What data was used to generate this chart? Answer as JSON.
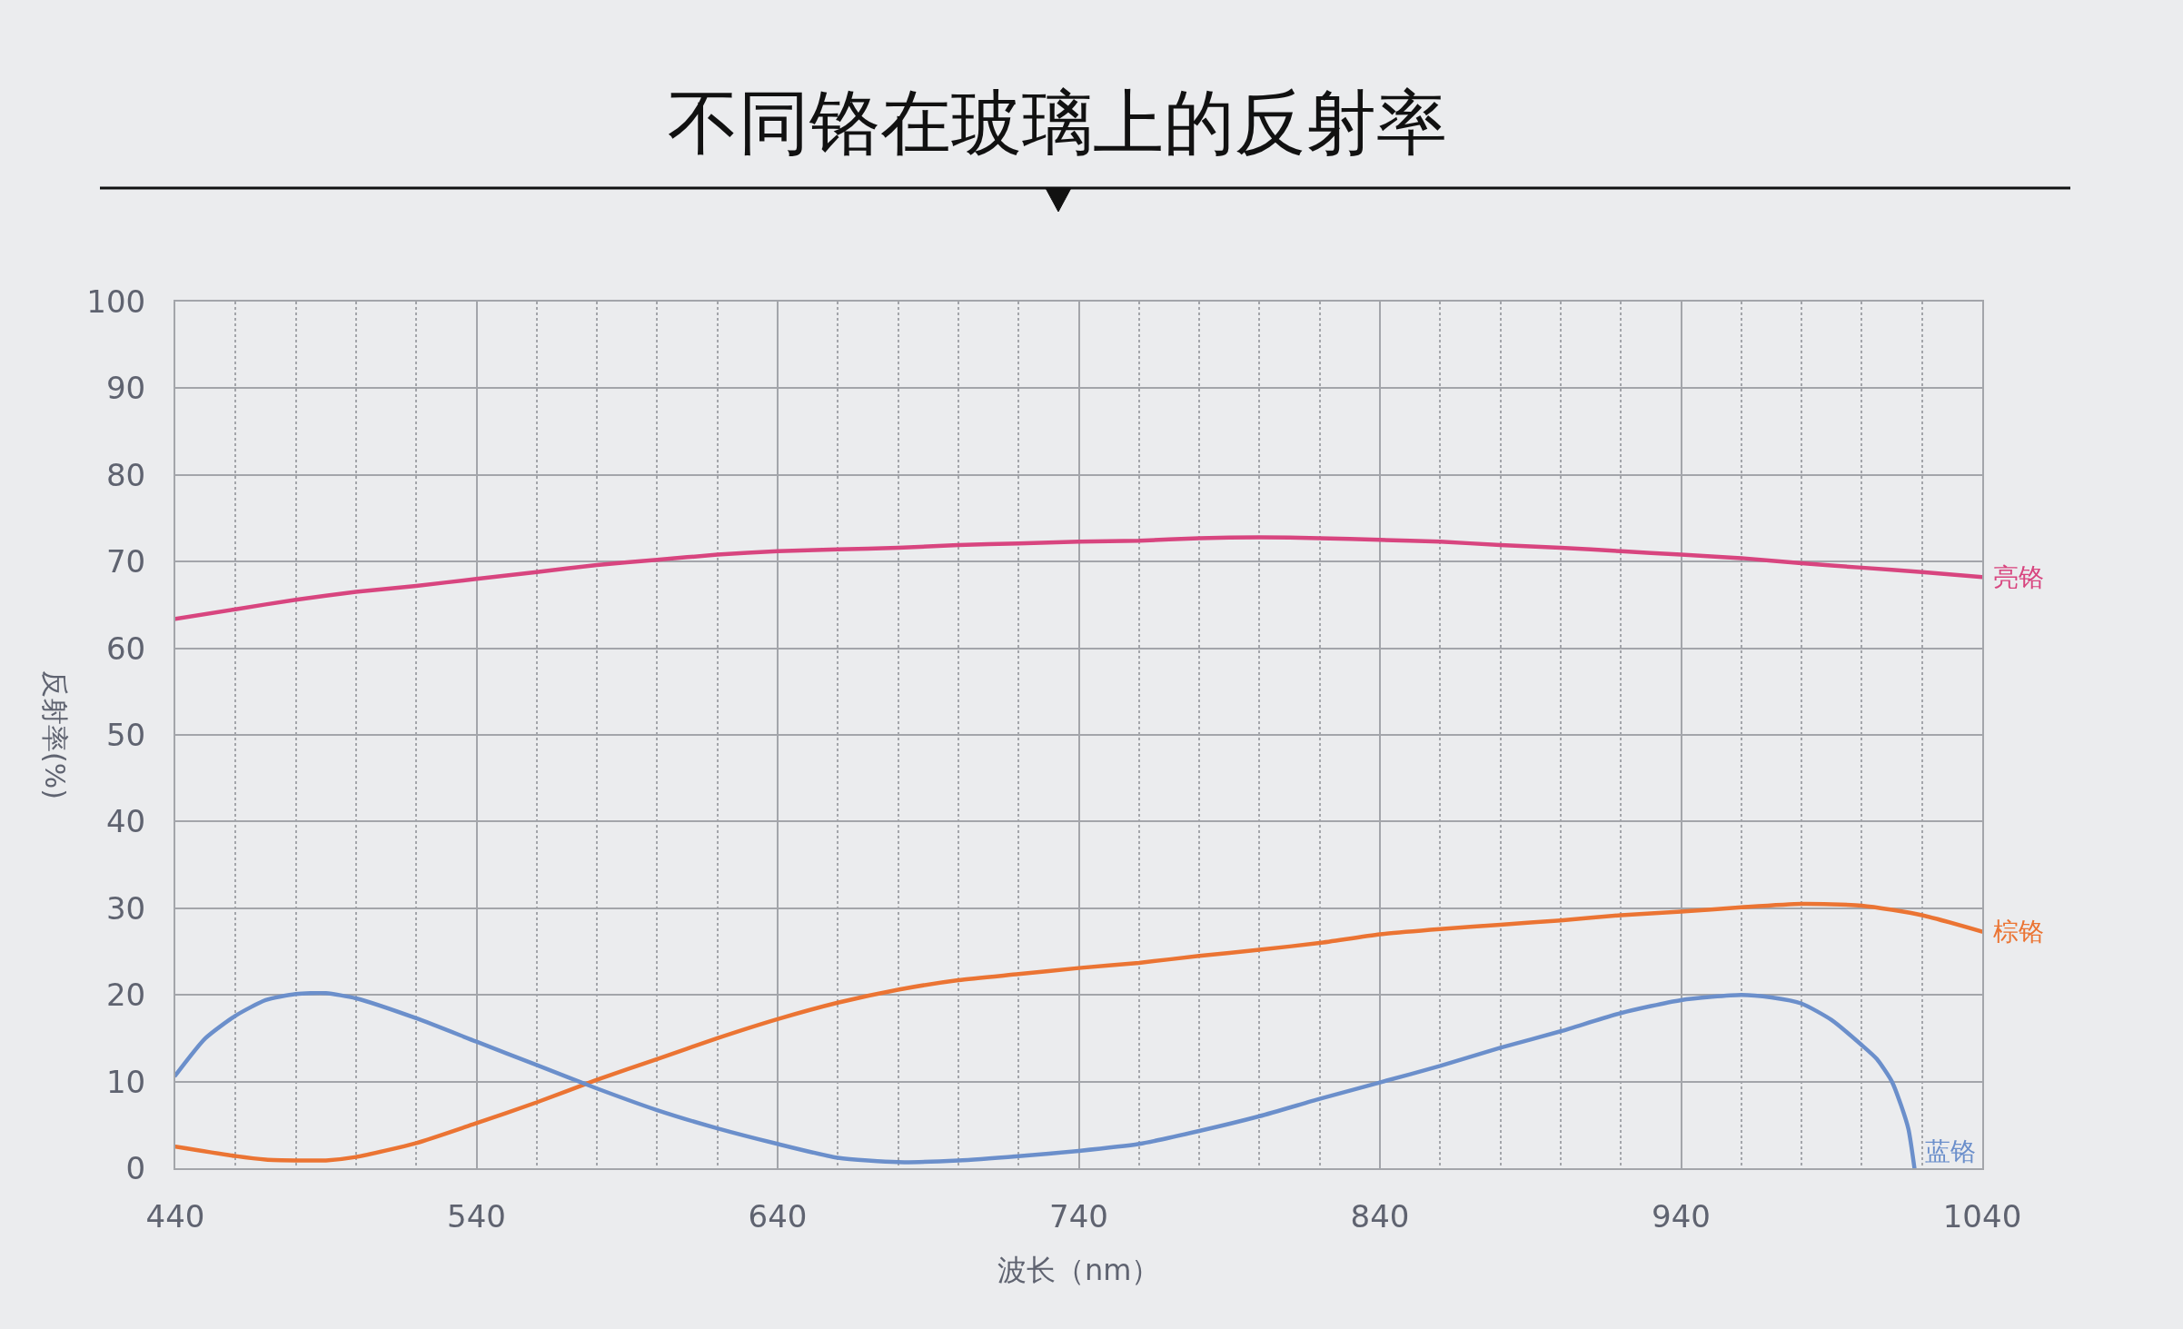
{
  "chart_data": {
    "type": "line",
    "title": "不同铬在玻璃上的反射率",
    "xlabel": "波长（nm）",
    "ylabel": "反射率(%)",
    "xlim": [
      440,
      1040
    ],
    "xticks": [
      440,
      {
        "value": 460,
        "label": null
      },
      {
        "value": 480,
        "label": null
      },
      {
        "value": 500,
        "label": null
      },
      {
        "value": 520,
        "label": null
      },
      540,
      {
        "value": 560,
        "label": null
      },
      {
        "value": 580,
        "label": null
      },
      {
        "value": 600,
        "label": null
      },
      {
        "value": 620,
        "label": null
      },
      640,
      {
        "value": 660,
        "label": null
      },
      {
        "value": 680,
        "label": null
      },
      {
        "value": 700,
        "label": null
      },
      {
        "value": 720,
        "label": null
      },
      740,
      {
        "value": 760,
        "label": null
      },
      {
        "value": 780,
        "label": null
      },
      {
        "value": 800,
        "label": null
      },
      {
        "value": 820,
        "label": null
      },
      840,
      {
        "value": 860,
        "label": null
      },
      {
        "value": 880,
        "label": null
      },
      {
        "value": 900,
        "label": null
      },
      {
        "value": 920,
        "label": null
      },
      940,
      {
        "value": 960,
        "label": null
      },
      {
        "value": 980,
        "label": null
      },
      {
        "value": 1000,
        "label": null
      },
      {
        "value": 1020,
        "label": null
      },
      1040
    ],
    "ylim": [
      0,
      100
    ],
    "yticks": [
      0,
      10,
      20,
      30,
      40,
      50,
      60,
      70,
      80,
      90,
      100
    ],
    "grid": true,
    "marker": "none",
    "line_style": "solid",
    "series": [
      {
        "name": "亮铬",
        "color": "#d8457f",
        "x": [
          440,
          460,
          480,
          500,
          520,
          540,
          560,
          580,
          600,
          620,
          640,
          660,
          680,
          700,
          720,
          740,
          760,
          780,
          800,
          820,
          840,
          860,
          880,
          900,
          920,
          940,
          960,
          980,
          1000,
          1020,
          1040
        ],
        "values": [
          63.4,
          64.5,
          65.6,
          66.5,
          67.2,
          68.0,
          68.8,
          69.6,
          70.2,
          70.8,
          71.2,
          71.4,
          71.6,
          71.9,
          72.1,
          72.3,
          72.4,
          72.7,
          72.8,
          72.7,
          72.5,
          72.3,
          71.9,
          71.6,
          71.2,
          70.8,
          70.4,
          69.8,
          69.3,
          68.8,
          68.2
        ]
      },
      {
        "name": "棕铬",
        "color": "#eb7433",
        "x": [
          440,
          460,
          470,
          480,
          490,
          500,
          520,
          540,
          560,
          580,
          600,
          620,
          640,
          660,
          680,
          700,
          720,
          740,
          760,
          780,
          800,
          820,
          840,
          860,
          880,
          900,
          920,
          940,
          960,
          980,
          1000,
          1020,
          1040
        ],
        "values": [
          2.5,
          1.4,
          1.0,
          0.9,
          0.9,
          1.3,
          2.9,
          5.2,
          7.6,
          10.2,
          12.6,
          15.0,
          17.2,
          19.1,
          20.6,
          21.7,
          22.4,
          23.1,
          23.7,
          24.5,
          25.2,
          26.0,
          27.0,
          27.6,
          28.1,
          28.6,
          29.2,
          29.6,
          30.1,
          30.5,
          30.3,
          29.2,
          27.3
        ]
      },
      {
        "name": "蓝铬",
        "color": "#6b8fcb",
        "x": [
          440,
          450,
          460,
          470,
          480,
          490,
          500,
          520,
          540,
          560,
          580,
          600,
          620,
          640,
          660,
          680,
          700,
          720,
          740,
          760,
          780,
          800,
          820,
          840,
          860,
          880,
          900,
          920,
          940,
          960,
          970,
          980,
          990,
          1000,
          1005,
          1010,
          1013,
          1015.5,
          1017.5
        ],
        "values": [
          10.7,
          15.0,
          17.6,
          19.4,
          20.1,
          20.2,
          19.6,
          17.3,
          14.6,
          11.9,
          9.2,
          6.7,
          4.6,
          2.8,
          1.2,
          0.7,
          0.9,
          1.4,
          2.0,
          2.8,
          4.3,
          6.0,
          8.0,
          9.9,
          11.8,
          13.9,
          15.8,
          17.9,
          19.4,
          20.0,
          19.7,
          19.0,
          17.1,
          14.2,
          12.6,
          10.0,
          7.3,
          4.5,
          0
        ]
      }
    ]
  }
}
